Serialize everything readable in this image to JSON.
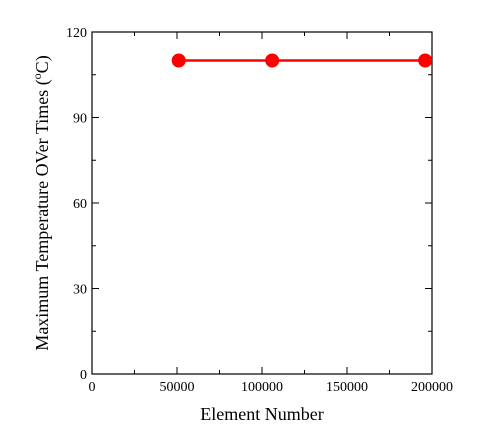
{
  "chart_data": {
    "type": "line",
    "xlabel": "Element Number",
    "ylabel_main": "Maximum Temperature OVer Times (",
    "ylabel_sup": "o",
    "ylabel_unit": "C)",
    "xlim": [
      0,
      200000
    ],
    "ylim": [
      0,
      120
    ],
    "xticks": [
      0,
      50000,
      100000,
      150000,
      200000
    ],
    "yticks": [
      0,
      30,
      60,
      90,
      120
    ],
    "grid": false,
    "series": [
      {
        "color": "#ff0000",
        "marker": "circle",
        "x": [
          51000,
          106000,
          196000
        ],
        "y": [
          110,
          110,
          110
        ]
      }
    ]
  }
}
